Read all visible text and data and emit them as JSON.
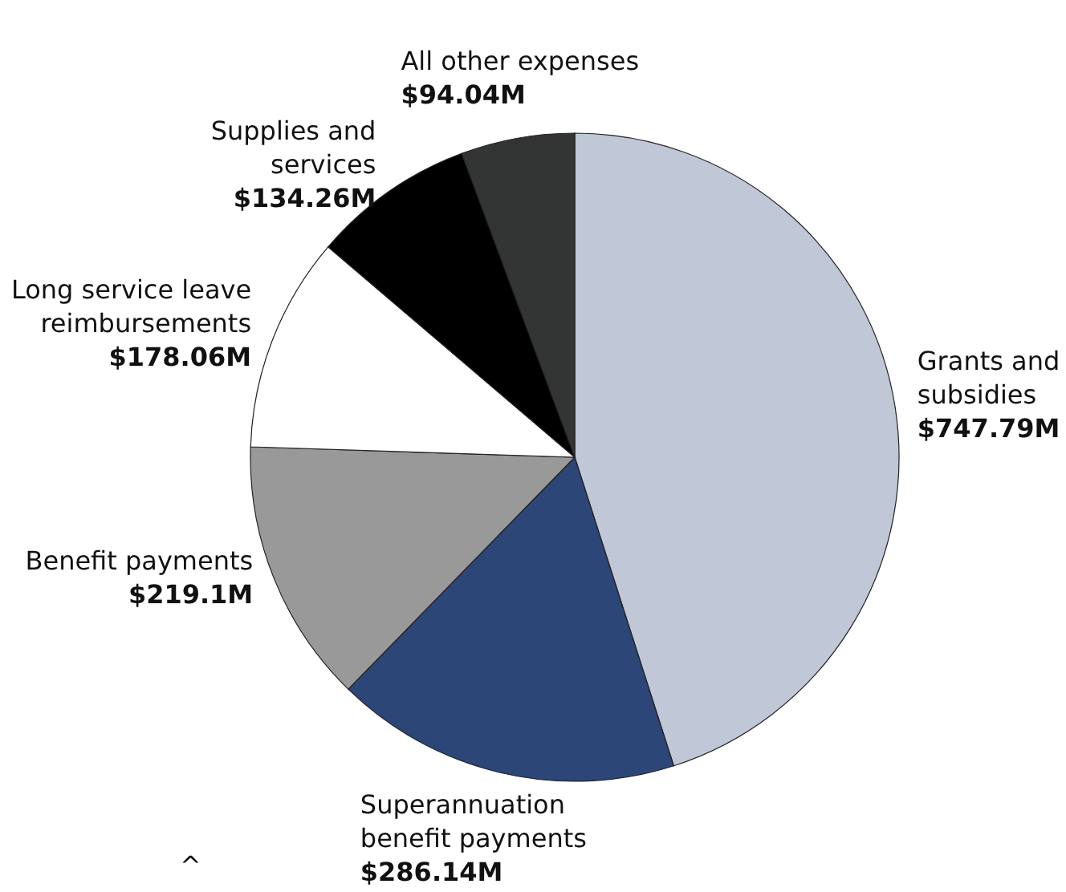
{
  "chart_data": {
    "type": "pie",
    "categories": [
      "Grants and subsidies",
      "Superannuation benefit payments",
      "Benefit payments",
      "Long service leave reimbursements",
      "Supplies and services",
      "All other expenses"
    ],
    "values": [
      747.79,
      286.14,
      219.1,
      178.06,
      134.26,
      94.04
    ],
    "value_labels": [
      "$747.79M",
      "$286.14M",
      "$219.1M",
      "$178.06M",
      "$134.26M",
      "$94.04M"
    ],
    "colors": [
      "#c0c7d6",
      "#2c4677",
      "#999999",
      "#ffffff",
      "#000000",
      "#333535"
    ],
    "annotations": [
      "^"
    ]
  }
}
